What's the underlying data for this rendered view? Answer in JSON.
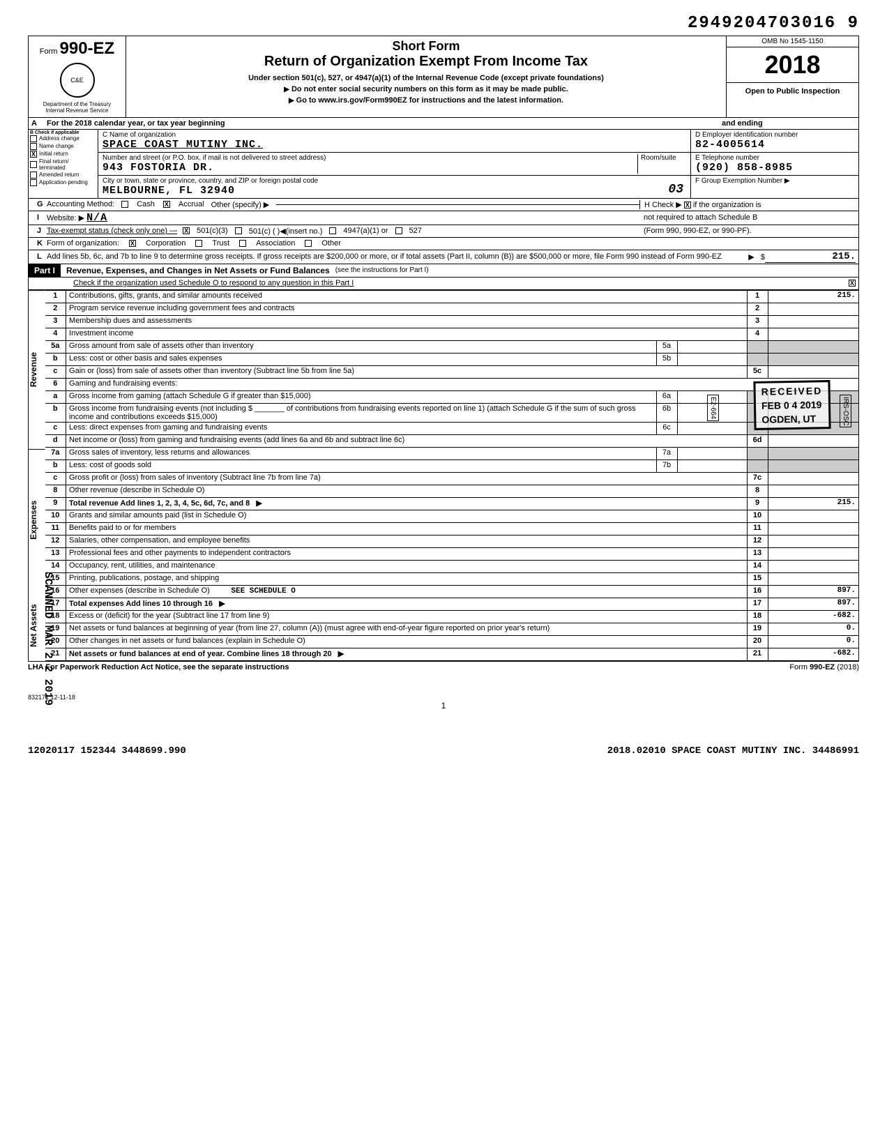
{
  "dln": "2949204703016 9",
  "form_number_prefix": "Form",
  "form_number": "990-EZ",
  "short_form": "Short Form",
  "title": "Return of Organization Exempt From Income Tax",
  "subtitle1": "Under section 501(c), 527, or 4947(a)(1) of the Internal Revenue Code (except private foundations)",
  "subtitle2": "Do not enter social security numbers on this form as it may be made public.",
  "subtitle3": "Go to www.irs.gov/Form990EZ for instructions and the latest information.",
  "dept1": "Department of the Treasury",
  "dept2": "Internal Revenue Service",
  "omb": "OMB No 1545-1150",
  "year": "2018",
  "open_public": "Open to Public Inspection",
  "line_a": "For the 2018 calendar year, or tax year beginning",
  "line_a_end": "and ending",
  "b_header": "Check if applicable",
  "b_opts": [
    "Address change",
    "Name change",
    "Initial return",
    "Final return/ terminated",
    "Amended return",
    "Application pending"
  ],
  "b_checked": "Initial return",
  "c_label": "C Name of organization",
  "c_value": "SPACE COAST MUTINY INC.",
  "c_addr_label": "Number and street (or P.O. box, if mail is not delivered to street address)",
  "c_room": "Room/suite",
  "c_addr": "943 FOSTORIA DR.",
  "c_city_label": "City or town, state or province, country, and ZIP or foreign postal code",
  "c_city": "MELBOURNE, FL  32940",
  "c_hand": "03",
  "d_label": "D Employer identification number",
  "d_value": "82-4005614",
  "e_label": "E Telephone number",
  "e_value": "(920) 858-8985",
  "f_label": "F Group Exemption Number ▶",
  "g": "Accounting Method:",
  "g_opts": [
    "Cash",
    "Accrual"
  ],
  "g_other": "Other (specify) ▶",
  "g_checked": "Accrual",
  "h": "Check ▶",
  "h_text": "if the organization is not required to attach Schedule B (Form 990, 990-EZ, or 990-PF).",
  "h_checked": true,
  "i": "Website: ▶",
  "i_value": "N/A",
  "j": "Tax-exempt status (check only one) —",
  "j_opts": [
    "501(c)(3)",
    "501(c) (          )◀(insert no.)",
    "4947(a)(1) or",
    "527"
  ],
  "j_checked": "501(c)(3)",
  "k": "Form of organization:",
  "k_opts": [
    "Corporation",
    "Trust",
    "Association",
    "Other"
  ],
  "k_checked": "Corporation",
  "l": "Add lines 5b, 6c, and 7b to line 9 to determine gross receipts. If gross receipts are $200,000 or more, or if total assets (Part II, column (B)) are $500,000 or more, file Form 990 instead of Form 990-EZ",
  "l_amt": "215.",
  "part1_title": "Revenue, Expenses, and Changes in Net Assets or Fund Balances",
  "part1_sub": "(see the instructions for Part I)",
  "part1_check": "Check if the organization used Schedule O to respond to any question in this Part I",
  "part1_checked": true,
  "sections": {
    "revenue": "Revenue",
    "expenses": "Expenses",
    "netassets": "Net Assets"
  },
  "lines": [
    {
      "n": "1",
      "desc": "Contributions, gifts, grants, and similar amounts received",
      "col": "1",
      "amt": "215."
    },
    {
      "n": "2",
      "desc": "Program service revenue including government fees and contracts",
      "col": "2",
      "amt": ""
    },
    {
      "n": "3",
      "desc": "Membership dues and assessments",
      "col": "3",
      "amt": ""
    },
    {
      "n": "4",
      "desc": "Investment income",
      "col": "4",
      "amt": ""
    },
    {
      "n": "5a",
      "desc": "Gross amount from sale of assets other than inventory",
      "mini": "5a"
    },
    {
      "n": "b",
      "desc": "Less: cost or other basis and sales expenses",
      "mini": "5b"
    },
    {
      "n": "c",
      "desc": "Gain or (loss) from sale of assets other than inventory (Subtract line 5b from line 5a)",
      "col": "5c",
      "amt": ""
    },
    {
      "n": "6",
      "desc": "Gaming and fundraising events:"
    },
    {
      "n": "a",
      "desc": "Gross income from gaming (attach Schedule G if greater than $15,000)",
      "mini": "6a"
    },
    {
      "n": "b",
      "desc": "Gross income from fundraising events (not including $ _______ of contributions from fundraising events reported on line 1) (attach Schedule G if the sum of such gross income and contributions exceeds $15,000)",
      "mini": "6b"
    },
    {
      "n": "c",
      "desc": "Less: direct expenses from gaming and fundraising events",
      "mini": "6c"
    },
    {
      "n": "d",
      "desc": "Net income or (loss) from gaming and fundraising events (add lines 6a and 6b and subtract line 6c)",
      "col": "6d",
      "amt": ""
    },
    {
      "n": "7a",
      "desc": "Gross sales of inventory, less returns and allowances",
      "mini": "7a"
    },
    {
      "n": "b",
      "desc": "Less: cost of goods sold",
      "mini": "7b"
    },
    {
      "n": "c",
      "desc": "Gross profit or (loss) from sales of inventory (Subtract line 7b from line 7a)",
      "col": "7c",
      "amt": ""
    },
    {
      "n": "8",
      "desc": "Other revenue (describe in Schedule O)",
      "col": "8",
      "amt": ""
    },
    {
      "n": "9",
      "desc": "Total revenue  Add lines 1, 2, 3, 4, 5c, 6d, 7c, and 8",
      "col": "9",
      "amt": "215.",
      "arrow": true,
      "bold": true
    },
    {
      "n": "10",
      "desc": "Grants and similar amounts paid (list in Schedule O)",
      "col": "10",
      "amt": ""
    },
    {
      "n": "11",
      "desc": "Benefits paid to or for members",
      "col": "11",
      "amt": ""
    },
    {
      "n": "12",
      "desc": "Salaries, other compensation, and employee benefits",
      "col": "12",
      "amt": ""
    },
    {
      "n": "13",
      "desc": "Professional fees and other payments to independent contractors",
      "col": "13",
      "amt": ""
    },
    {
      "n": "14",
      "desc": "Occupancy, rent, utilities, and maintenance",
      "col": "14",
      "amt": ""
    },
    {
      "n": "15",
      "desc": "Printing, publications, postage, and shipping",
      "col": "15",
      "amt": ""
    },
    {
      "n": "16",
      "desc": "Other expenses (describe in Schedule O)",
      "extra": "SEE SCHEDULE O",
      "col": "16",
      "amt": "897."
    },
    {
      "n": "17",
      "desc": "Total expenses  Add lines 10 through 16",
      "col": "17",
      "amt": "897.",
      "arrow": true,
      "bold": true
    },
    {
      "n": "18",
      "desc": "Excess or (deficit) for the year (Subtract line 17 from line 9)",
      "col": "18",
      "amt": "-682."
    },
    {
      "n": "19",
      "desc": "Net assets or fund balances at beginning of year (from line 27, column (A)) (must agree with end-of-year figure reported on prior year's return)",
      "col": "19",
      "amt": "0."
    },
    {
      "n": "20",
      "desc": "Other changes in net assets or fund balances (explain in Schedule O)",
      "col": "20",
      "amt": "0."
    },
    {
      "n": "21",
      "desc": "Net assets or fund balances at end of year. Combine lines 18 through 20",
      "col": "21",
      "amt": "-682.",
      "arrow": true,
      "bold": true
    }
  ],
  "lha": "LHA  For Paperwork Reduction Act Notice, see the separate instructions",
  "form_footer": "Form 990-EZ (2018)",
  "pg_code": "832171  12-11-18",
  "page_num": "1",
  "bottom_left": "12020117 152344 3448699.990",
  "bottom_right": "2018.02010 SPACE COAST MUTINY INC.  34486991",
  "stamp_received": "RECEIVED",
  "stamp_date": "FEB 0 4 2019",
  "stamp_loc": "OGDEN, UT",
  "stamp_scanned": "SCANNED MAR 2 2 2019",
  "stamp_side1": "E2-664",
  "stamp_side2": "IRS-OSC"
}
